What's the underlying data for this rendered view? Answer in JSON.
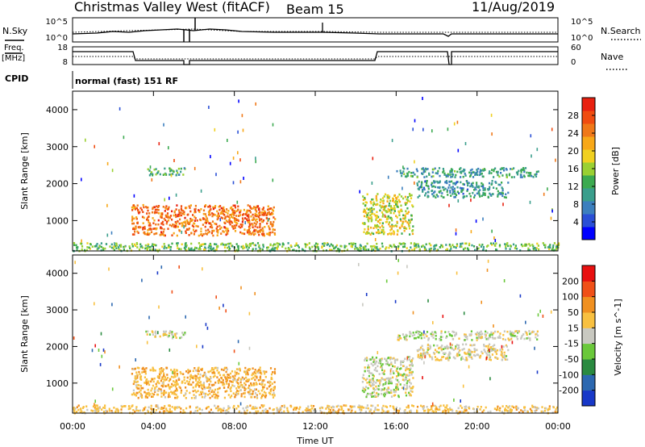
{
  "header": {
    "station": "Christmas Valley West (fitACF)",
    "beam": "Beam 15",
    "date": "11/Aug/2019"
  },
  "strip_labels": {
    "nsky": "N.Sky",
    "nsearch": "N.Search",
    "freq": "Freq.",
    "freq_unit": "[MHz]",
    "nave": "Nave",
    "cpid": "CPID",
    "cpid_value": "normal (fast) 151 RF",
    "noise_ticks": [
      "10^5",
      "10^0"
    ],
    "freq_ticks": [
      "18",
      "8"
    ],
    "nave_ticks": [
      "60",
      "0"
    ]
  },
  "chart_data": [
    {
      "type": "heatmap",
      "name": "power-panel",
      "title": "",
      "xlabel": "Time UT",
      "ylabel": "Slant Range [km]",
      "xlim": [
        0,
        24
      ],
      "ylim": [
        180,
        4500
      ],
      "x_ticks": [
        "00:00",
        "04:00",
        "08:00",
        "12:00",
        "16:00",
        "20:00",
        "00:00"
      ],
      "y_ticks": [
        1000,
        2000,
        3000,
        4000
      ],
      "colorbar": {
        "label": "Power [dB]",
        "range": [
          0,
          32
        ],
        "ticks": [
          4,
          8,
          12,
          16,
          20,
          24,
          28
        ],
        "colors": [
          "#0000ff",
          "#2a4fd6",
          "#3c7fbe",
          "#3a9e8c",
          "#3caa50",
          "#9ad032",
          "#f0d020",
          "#f8a818",
          "#f07818",
          "#f04c10",
          "#e82010"
        ]
      },
      "regions": [
        {
          "t0": 2.9,
          "t1": 10.0,
          "r0": 620,
          "r1": 1450,
          "level": 26
        },
        {
          "t0": 3.6,
          "t1": 5.6,
          "r0": 2250,
          "r1": 2450,
          "level": 12
        },
        {
          "t0": 14.3,
          "t1": 16.8,
          "r0": 650,
          "r1": 1750,
          "level": 18
        },
        {
          "t0": 16.0,
          "t1": 23.0,
          "r0": 2200,
          "r1": 2450,
          "level": 10
        },
        {
          "t0": 17.0,
          "t1": 21.5,
          "r0": 1650,
          "r1": 2100,
          "level": 9
        },
        {
          "t0": 0.0,
          "t1": 24.0,
          "r0": 200,
          "r1": 420,
          "level": 14
        }
      ]
    },
    {
      "type": "heatmap",
      "name": "velocity-panel",
      "title": "",
      "xlabel": "Time UT",
      "ylabel": "Slant Range [km]",
      "xlim": [
        0,
        24
      ],
      "ylim": [
        180,
        4500
      ],
      "x_ticks": [
        "00:00",
        "04:00",
        "08:00",
        "12:00",
        "16:00",
        "20:00",
        "00:00"
      ],
      "y_ticks": [
        1000,
        2000,
        3000,
        4000
      ],
      "colorbar": {
        "label": "Velocity [m s^-1]",
        "ticks": [
          "200",
          "100",
          "50",
          "15",
          "-15",
          "-50",
          "-100",
          "-200"
        ],
        "colors": [
          "#1838c8",
          "#2c68b0",
          "#2a8a40",
          "#6ac83a",
          "#c8c8c0",
          "#f8c040",
          "#f09020",
          "#f05018",
          "#e81010"
        ]
      },
      "regions": [
        {
          "t0": 2.9,
          "t1": 10.0,
          "r0": 620,
          "r1": 1450,
          "value": -40
        },
        {
          "t0": 3.6,
          "t1": 5.6,
          "r0": 2250,
          "r1": 2450,
          "value": 0
        },
        {
          "t0": 14.3,
          "t1": 16.8,
          "r0": 650,
          "r1": 1750,
          "value": 0
        },
        {
          "t0": 16.0,
          "t1": 23.0,
          "r0": 2200,
          "r1": 2450,
          "value": 0
        },
        {
          "t0": 17.0,
          "t1": 21.5,
          "r0": 1650,
          "r1": 2100,
          "value": -10
        },
        {
          "t0": 0.0,
          "t1": 24.0,
          "r0": 200,
          "r1": 420,
          "value": -30
        }
      ]
    }
  ]
}
